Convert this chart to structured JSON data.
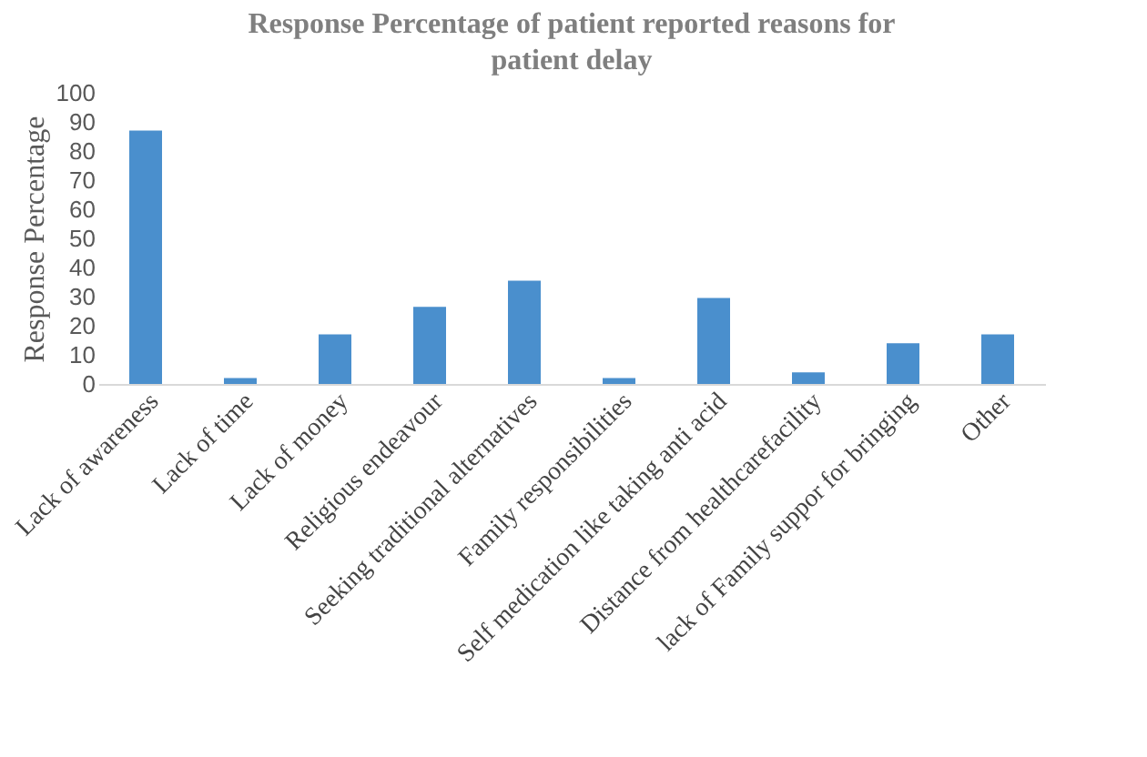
{
  "chart_data": {
    "type": "bar",
    "title": "Response Percentage of patient reported reasons for patient delay",
    "ylabel": "Response Percentage",
    "categories": [
      "Lack of awareness",
      "Lack of time",
      "Lack of money",
      "Religious endeavour",
      "Seeking traditional alternatives",
      "Family responsibilities",
      "Self medication like taking anti acid",
      "Distance from healthcarefacility",
      "lack of Family suppor for bringing",
      "Other"
    ],
    "values": [
      87,
      2,
      17,
      26.5,
      35.5,
      2,
      29.5,
      4,
      14,
      17
    ],
    "color": "#4a8fcd",
    "ylim": [
      0,
      100
    ],
    "yticks": [
      0,
      10,
      20,
      30,
      40,
      50,
      60,
      70,
      80,
      90,
      100
    ],
    "grid": false
  }
}
